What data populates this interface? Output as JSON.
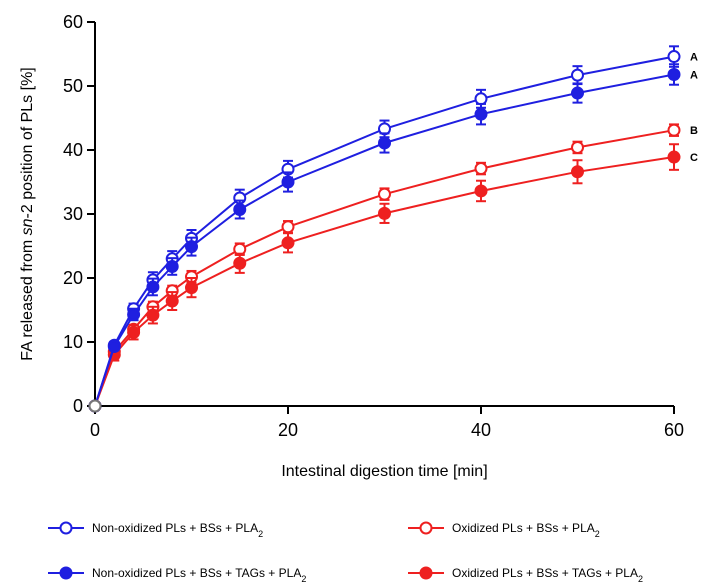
{
  "chart_data": {
    "type": "line",
    "title": "",
    "xlabel": "Intestinal digestion time [min]",
    "ylabel": {
      "part1": "FA released from ",
      "italic": "sn",
      "part2": "-2 position of PLs [%]"
    },
    "xlim": [
      0,
      60
    ],
    "ylim": [
      0,
      60
    ],
    "x_ticks": [
      "0",
      "20",
      "40",
      "60"
    ],
    "y_ticks": [
      "0",
      "10",
      "20",
      "30",
      "40",
      "50",
      "60"
    ],
    "x": [
      0,
      2,
      4,
      6,
      8,
      10,
      15,
      20,
      30,
      40,
      50,
      60
    ],
    "grid": false,
    "legend_position": "bottom",
    "series": [
      {
        "name": "Non-oxidized PLs + BSs + PLA",
        "name_sub": "2",
        "color": "#1f1fe0",
        "marker": "open-circle",
        "values": [
          0,
          9.5,
          15.2,
          19.7,
          23.0,
          26.2,
          32.5,
          37.0,
          43.3,
          48.0,
          51.7,
          54.6
        ],
        "errors": [
          0,
          0.5,
          0.8,
          1.2,
          1.2,
          1.3,
          1.3,
          1.3,
          1.3,
          1.4,
          1.4,
          1.6
        ],
        "annotation": "A"
      },
      {
        "name": "Oxidized PLs + BSs + PLA",
        "name_sub": "2",
        "color": "#ee2020",
        "marker": "open-circle",
        "values": [
          0,
          8.5,
          12.0,
          15.5,
          18.0,
          20.2,
          24.5,
          28.0,
          33.1,
          37.1,
          40.4,
          43.1
        ],
        "errors": [
          0,
          0.5,
          0.7,
          0.8,
          0.8,
          0.9,
          0.9,
          0.9,
          0.9,
          0.9,
          0.9,
          0.9
        ],
        "annotation": "B"
      },
      {
        "name": "Non-oxidized PLs + BSs + TAGs + PLA",
        "name_sub": "2",
        "color": "#1f1fe0",
        "marker": "filled-circle",
        "values": [
          0,
          9.3,
          14.3,
          18.6,
          21.8,
          24.9,
          30.7,
          35.0,
          41.1,
          45.6,
          48.9,
          51.8
        ],
        "errors": [
          0,
          0.6,
          0.9,
          1.3,
          1.3,
          1.4,
          1.4,
          1.5,
          1.5,
          1.6,
          1.5,
          1.6
        ],
        "annotation": "A"
      },
      {
        "name": "Oxidized PLs + BSs + TAGs + PLA",
        "name_sub": "2",
        "color": "#ee2020",
        "marker": "filled-circle",
        "values": [
          0,
          8.0,
          11.5,
          14.2,
          16.4,
          18.5,
          22.3,
          25.5,
          30.1,
          33.6,
          36.6,
          38.9
        ],
        "errors": [
          0,
          0.9,
          1.1,
          1.3,
          1.4,
          1.5,
          1.5,
          1.5,
          1.5,
          1.6,
          1.8,
          2.0
        ],
        "annotation": "C"
      }
    ]
  }
}
